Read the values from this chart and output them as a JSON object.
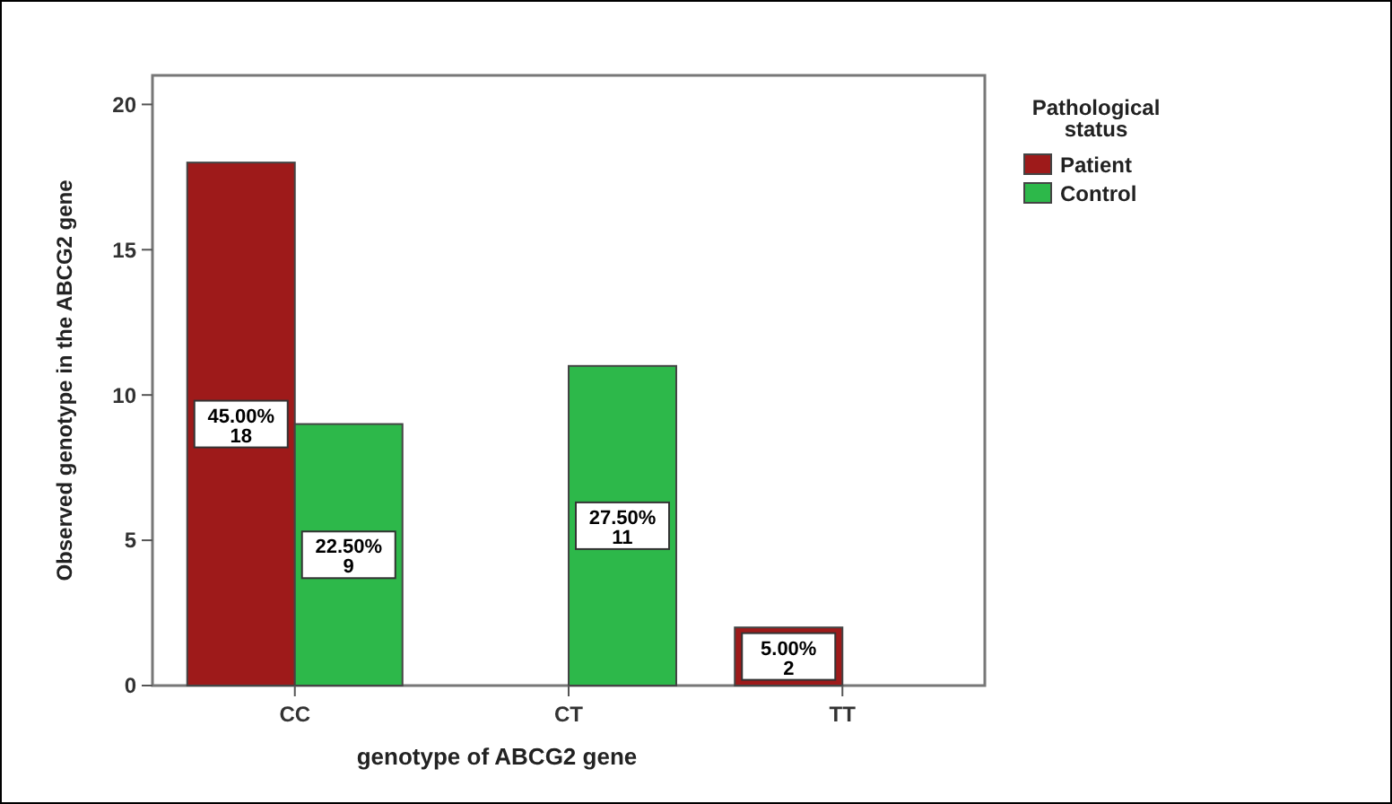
{
  "chart_data": {
    "type": "bar",
    "xlabel": "genotype of ABCG2 gene",
    "ylabel": "Observed genotype in the ABCG2 gene",
    "legend_title": "Pathological status",
    "categories": [
      "CC",
      "CT",
      "TT"
    ],
    "series": [
      {
        "name": "Patient",
        "color": "#9e1a1a",
        "values": [
          18,
          null,
          2
        ],
        "value_labels": [
          "45.00%\n18",
          null,
          "5.00%\n2"
        ]
      },
      {
        "name": "Control",
        "color": "#2db84a",
        "values": [
          9,
          11,
          null
        ],
        "value_labels": [
          "22.50%\n9",
          "27.50%\n11",
          null
        ]
      }
    ],
    "ylim": [
      0,
      21
    ],
    "yticks": [
      0,
      5,
      10,
      15,
      20
    ],
    "grid": false,
    "legend": "top right"
  }
}
